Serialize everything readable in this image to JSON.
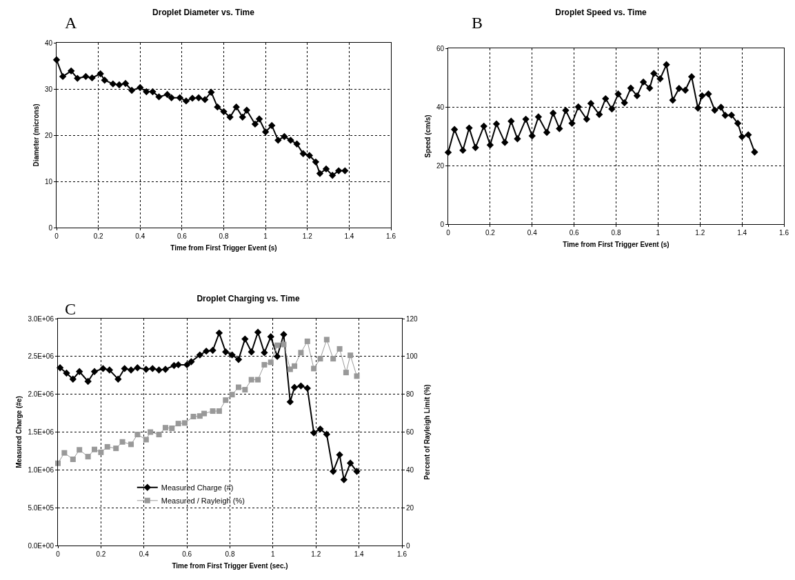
{
  "chart_data": [
    {
      "type": "line",
      "title": "Droplet Diameter vs. Time",
      "xlabel": "Time from First Trigger Event (s)",
      "ylabel": "Diameter (microns)",
      "annotations": [
        "A"
      ],
      "marker": "diamond",
      "line_style": "solid",
      "grid": true,
      "legend": false,
      "xlim": [
        0,
        1.6
      ],
      "xticks": [
        0,
        0.2,
        0.4,
        0.6,
        0.8,
        1,
        1.2,
        1.4,
        1.6
      ],
      "ylim": [
        0,
        40
      ],
      "yticks": [
        0,
        10,
        20,
        30,
        40
      ],
      "series": [
        {
          "color": "#000000",
          "x": [
            0,
            0.03,
            0.07,
            0.1,
            0.14,
            0.17,
            0.21,
            0.23,
            0.27,
            0.3,
            0.33,
            0.36,
            0.4,
            0.43,
            0.46,
            0.49,
            0.53,
            0.55,
            0.59,
            0.62,
            0.65,
            0.68,
            0.71,
            0.74,
            0.77,
            0.8,
            0.83,
            0.86,
            0.89,
            0.91,
            0.95,
            0.97,
            1.0,
            1.03,
            1.06,
            1.09,
            1.12,
            1.15,
            1.18,
            1.21,
            1.24,
            1.26,
            1.29,
            1.32,
            1.35,
            1.38
          ],
          "values": [
            36.3,
            32.7,
            33.9,
            32.3,
            32.7,
            32.4,
            33.3,
            31.9,
            31.1,
            30.9,
            31.2,
            29.7,
            30.3,
            29.4,
            29.4,
            28.3,
            28.8,
            28.1,
            28.1,
            27.4,
            28.0,
            28.1,
            27.7,
            29.3,
            26.1,
            25.1,
            23.9,
            26.1,
            23.9,
            25.4,
            22.4,
            23.5,
            20.7,
            22.1,
            18.9,
            19.7,
            18.9,
            18.1,
            16.0,
            15.6,
            14.2,
            11.7,
            12.7,
            11.3,
            12.3,
            12.3
          ]
        }
      ]
    },
    {
      "type": "line",
      "title": "Droplet Speed vs. Time",
      "xlabel": "Time from First Trigger Event (s)",
      "ylabel": "Speed (cm/s)",
      "annotations": [
        "B"
      ],
      "marker": "diamond",
      "line_style": "solid",
      "grid": true,
      "legend": false,
      "xlim": [
        0,
        1.6
      ],
      "xticks": [
        0,
        0.2,
        0.4,
        0.6,
        0.8,
        1,
        1.2,
        1.4,
        1.6
      ],
      "ylim": [
        0,
        60
      ],
      "yticks": [
        0,
        20,
        40,
        60
      ],
      "series": [
        {
          "color": "#000000",
          "x": [
            0,
            0.03,
            0.07,
            0.1,
            0.13,
            0.17,
            0.2,
            0.23,
            0.27,
            0.3,
            0.33,
            0.37,
            0.4,
            0.43,
            0.47,
            0.5,
            0.53,
            0.56,
            0.59,
            0.62,
            0.66,
            0.68,
            0.72,
            0.75,
            0.78,
            0.81,
            0.84,
            0.87,
            0.9,
            0.93,
            0.96,
            0.98,
            1.01,
            1.04,
            1.07,
            1.1,
            1.13,
            1.16,
            1.19,
            1.21,
            1.24,
            1.27,
            1.3,
            1.32,
            1.35,
            1.38,
            1.4,
            1.43,
            1.46
          ],
          "values": [
            24.5,
            32.3,
            25.2,
            32.8,
            26.1,
            33.4,
            27.0,
            34.2,
            27.9,
            35.1,
            29.1,
            35.8,
            30.1,
            36.6,
            31.3,
            37.9,
            32.6,
            38.8,
            34.4,
            40.0,
            35.8,
            41.2,
            37.4,
            42.8,
            39.3,
            44.4,
            41.4,
            46.4,
            43.8,
            48.5,
            46.4,
            51.4,
            49.6,
            54.4,
            42.3,
            46.3,
            45.7,
            50.3,
            39.6,
            43.8,
            44.4,
            38.9,
            39.9,
            37.1,
            37.2,
            34.4,
            29.8,
            30.5,
            24.6
          ]
        }
      ]
    },
    {
      "type": "line",
      "title": "Droplet Charging vs. Time",
      "xlabel": "Time from First Trigger Event (sec.)",
      "ylabel": "Measured Charge (#e)",
      "y2label": "Percent of Rayleigh Limit (%)",
      "annotations": [
        "C"
      ],
      "line_style": "solid",
      "grid": true,
      "legend": "bottom left",
      "xlim": [
        0,
        1.6
      ],
      "xticks": [
        0,
        0.2,
        0.4,
        0.6,
        0.8,
        1,
        1.2,
        1.4,
        1.6
      ],
      "ylim": [
        0,
        3000000
      ],
      "yticks": [
        {
          "value": 0,
          "label": "0.0E+00"
        },
        {
          "value": 500000,
          "label": "5.0E+05"
        },
        {
          "value": 1000000,
          "label": "1.0E+06"
        },
        {
          "value": 1500000,
          "label": "1.5E+06"
        },
        {
          "value": 2000000,
          "label": "2.0E+06"
        },
        {
          "value": 2500000,
          "label": "2.5E+06"
        },
        {
          "value": 3000000,
          "label": "3.0E+06"
        }
      ],
      "y2lim": [
        0,
        120
      ],
      "y2ticks": [
        0,
        20,
        40,
        60,
        80,
        100,
        120
      ],
      "series": [
        {
          "name": "Measured Charge (#)",
          "color": "#000000",
          "marker": "diamond",
          "x": [
            0.01,
            0.04,
            0.07,
            0.1,
            0.14,
            0.17,
            0.21,
            0.24,
            0.28,
            0.31,
            0.34,
            0.37,
            0.41,
            0.44,
            0.47,
            0.5,
            0.54,
            0.56,
            0.6,
            0.62,
            0.66,
            0.69,
            0.72,
            0.75,
            0.78,
            0.81,
            0.84,
            0.87,
            0.9,
            0.93,
            0.96,
            0.99,
            1.02,
            1.05,
            1.08,
            1.1,
            1.13,
            1.16,
            1.19,
            1.22,
            1.25,
            1.28,
            1.31,
            1.33,
            1.36,
            1.39
          ],
          "values": [
            2350000,
            2280000,
            2200000,
            2300000,
            2170000,
            2300000,
            2340000,
            2320000,
            2200000,
            2340000,
            2320000,
            2350000,
            2330000,
            2340000,
            2320000,
            2330000,
            2380000,
            2390000,
            2390000,
            2430000,
            2520000,
            2570000,
            2580000,
            2810000,
            2560000,
            2520000,
            2460000,
            2730000,
            2560000,
            2820000,
            2550000,
            2760000,
            2500000,
            2790000,
            1900000,
            2090000,
            2110000,
            2080000,
            1490000,
            1540000,
            1470000,
            980000,
            1200000,
            870000,
            1090000,
            980000
          ]
        },
        {
          "name": "Measured / Rayleigh (%)",
          "color": "#999999",
          "marker": "square",
          "axis": "y2",
          "x": [
            0,
            0.03,
            0.07,
            0.1,
            0.14,
            0.17,
            0.2,
            0.23,
            0.27,
            0.3,
            0.34,
            0.37,
            0.41,
            0.43,
            0.47,
            0.5,
            0.53,
            0.56,
            0.59,
            0.63,
            0.66,
            0.68,
            0.72,
            0.75,
            0.78,
            0.81,
            0.84,
            0.87,
            0.9,
            0.93,
            0.96,
            0.99,
            1.02,
            1.05,
            1.08,
            1.1,
            1.13,
            1.16,
            1.19,
            1.22,
            1.25,
            1.28,
            1.31,
            1.34,
            1.36,
            1.39
          ],
          "values": [
            43.5,
            49,
            45.6,
            50.6,
            47,
            50.8,
            49.3,
            52.2,
            51.4,
            54.8,
            53.5,
            58.7,
            56,
            60,
            58.7,
            62.3,
            62,
            64.5,
            64.8,
            68.2,
            68.5,
            69.8,
            71.1,
            71.1,
            76.9,
            79.8,
            83.7,
            82.4,
            87.7,
            87.7,
            95.6,
            96.9,
            105.9,
            106.3,
            93.2,
            94.9,
            102,
            108,
            93.6,
            98.8,
            108.9,
            98.8,
            104,
            91.5,
            100.6,
            89.6
          ]
        }
      ]
    }
  ]
}
